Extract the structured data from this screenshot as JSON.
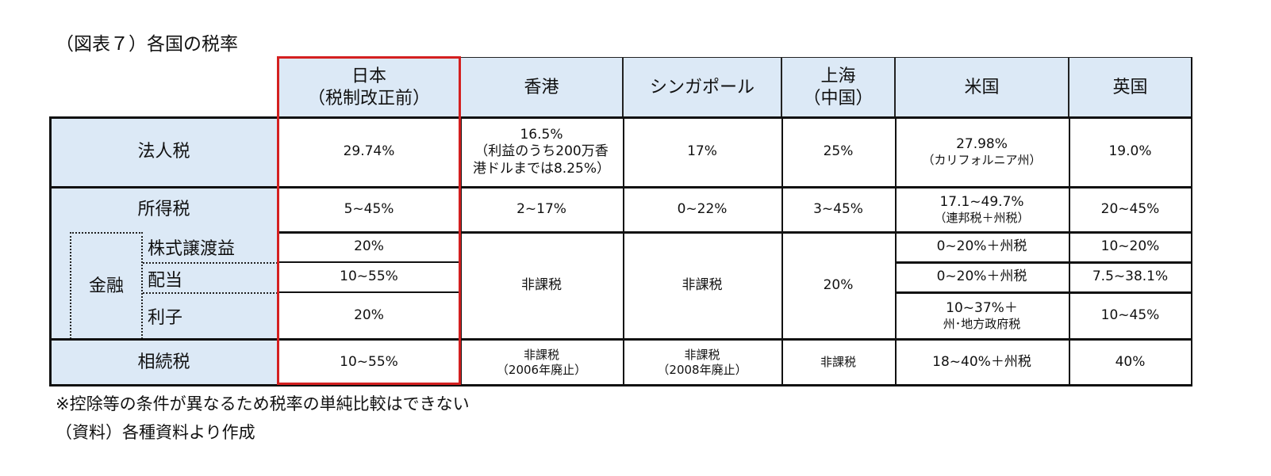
{
  "title": "（図表７）各国の税率",
  "columns": [
    {
      "line1": "日本",
      "line2": "（税制改正前）"
    },
    {
      "line1": "香港",
      "line2": ""
    },
    {
      "line1": "シンガポール",
      "line2": ""
    },
    {
      "line1": "上海",
      "line2": "（中国）"
    },
    {
      "line1": "米国",
      "line2": ""
    },
    {
      "line1": "英国",
      "line2": ""
    }
  ],
  "rows": {
    "corporate": {
      "label": "法人税",
      "japan": "29.74%",
      "hk": [
        "16.5%",
        "（利益のうち200万香",
        "港ドルまでは8.25%）"
      ],
      "sg": "17%",
      "sh": "25%",
      "us": [
        "27.98%",
        "（カリフォルニア州）"
      ],
      "uk": "19.0%"
    },
    "income": {
      "label": "所得税",
      "japan": "5~45%",
      "hk": "2~17%",
      "sg": "0~22%",
      "sh": "3~45%",
      "us": [
        "17.1~49.7%",
        "（連邦税＋州税）"
      ],
      "uk": "20~45%"
    },
    "finance": {
      "label": "金融",
      "hk": "非課税",
      "sg": "非課税",
      "sh": "20%",
      "items": [
        {
          "label": "株式譲渡益",
          "japan": "20%",
          "us": [
            "0~20%＋州税"
          ],
          "uk": "10~20%"
        },
        {
          "label": "配当",
          "japan": "10~55%",
          "us": [
            "0~20%＋州税"
          ],
          "uk": "7.5~38.1%"
        },
        {
          "label": "利子",
          "japan": "20%",
          "us": [
            "10~37%＋",
            "州･地方政府税"
          ],
          "uk": "10~45%"
        }
      ]
    },
    "inheritance": {
      "label": "相続税",
      "japan": "10~55%",
      "hk": [
        "非課税",
        "（2006年廃止）"
      ],
      "sg": [
        "非課税",
        "（2008年廃止）"
      ],
      "sh": "非課税",
      "us": "18~40%＋州税",
      "uk": "40%"
    }
  },
  "notes": [
    "※控除等の条件が異なるため税率の単純比較はできない",
    "（資料）各種資料より作成"
  ],
  "colors": {
    "header_bg": "#dce9f6",
    "highlight": "#d42020"
  }
}
